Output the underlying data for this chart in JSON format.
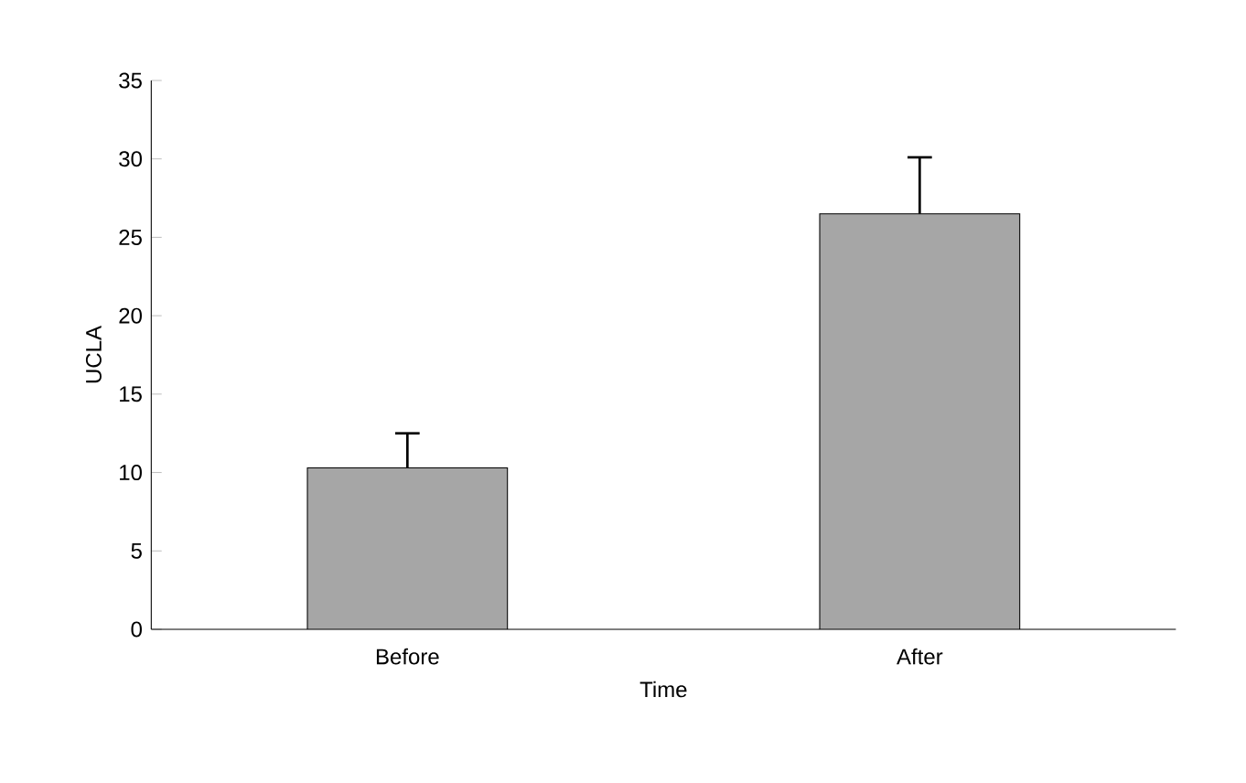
{
  "chart_data": {
    "type": "bar",
    "xlabel": "Time",
    "ylabel": "UCLA",
    "categories": [
      "Before",
      "After"
    ],
    "values": [
      10.3,
      26.5
    ],
    "errors": [
      [
        10.3,
        12.5
      ],
      [
        26.5,
        30.1
      ]
    ],
    "color": "#a6a6a6",
    "ylim": [
      0,
      35
    ],
    "yticks": [
      0,
      5,
      10,
      15,
      20,
      25,
      30,
      35
    ],
    "grid": false
  }
}
